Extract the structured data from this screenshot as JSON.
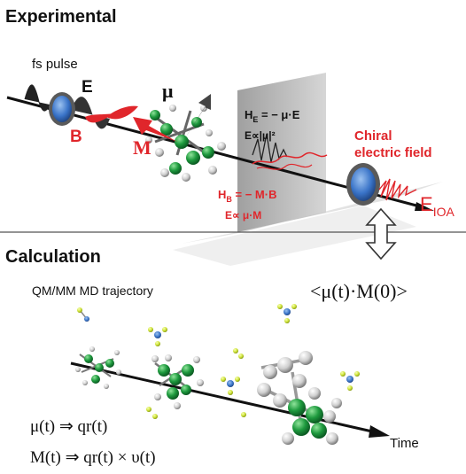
{
  "sections": {
    "experimental": "Experimental",
    "calculation": "Calculation"
  },
  "experimental": {
    "fs_pulse": "fs pulse",
    "e_field": "E",
    "b_field": "B",
    "dipole_mu": "μ",
    "dipole_m": "M",
    "he_label": "H",
    "he_sub": "E",
    "he_rest": " = − μ·E",
    "e_prop_mu2": "E∝|μ|²",
    "hb_label": "H",
    "hb_sub": "B",
    "hb_rest": " = − M·B",
    "e_prop_mum": "E∝ μ·M",
    "chiral_line1": "Chiral",
    "chiral_line2": "electric field",
    "eioa_main": "E",
    "eioa_sub": "IOA"
  },
  "calculation": {
    "trajectory": "QM/MM MD trajectory",
    "correlation": "<μ(t)·M(0)>",
    "eq1": "μ(t) ⇒ qr(t)",
    "eq2": "M(t) ⇒ qr(t) × υ(t)",
    "time_label": "Time"
  },
  "colors": {
    "red": "#e0262b",
    "green": "#1e9a3e",
    "blue": "#3a74c8",
    "plane_gray": "#bcbcbc",
    "ion_yellow": "#cfe33a"
  }
}
